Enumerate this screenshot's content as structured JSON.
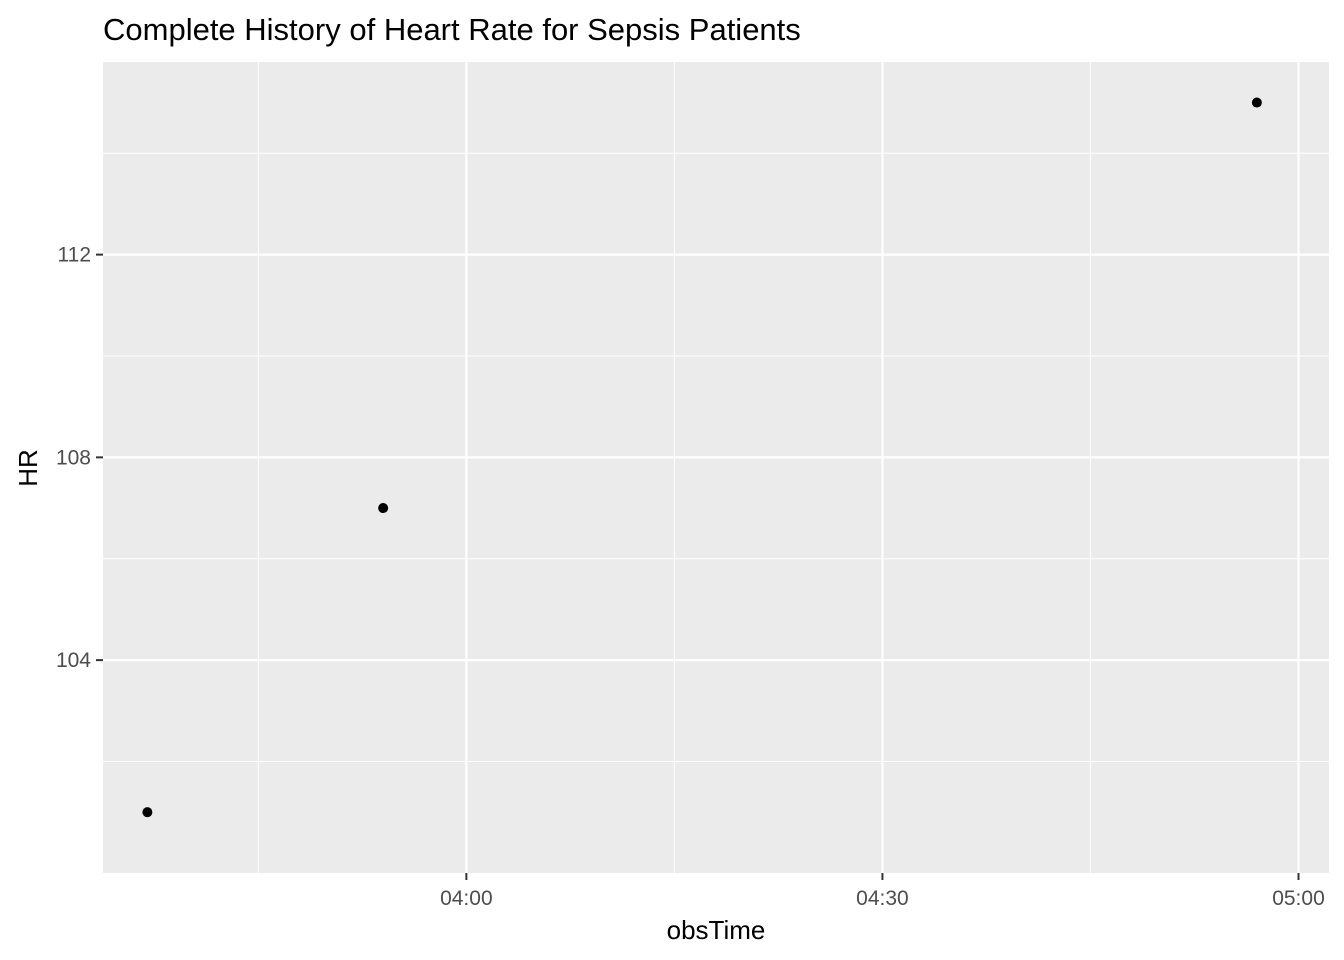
{
  "chart_data": {
    "type": "scatter",
    "title": "Complete History of Heart Rate for Sepsis Patients",
    "xlabel": "obsTime",
    "ylabel": "HR",
    "x_ticks": [
      "04:00",
      "04:30",
      "05:00"
    ],
    "y_ticks": [
      104,
      108,
      112
    ],
    "x_tick_minutes": [
      240,
      270,
      300
    ],
    "xlim_minutes": [
      213.8,
      302.2
    ],
    "ylim": [
      99.8,
      115.8
    ],
    "points": [
      {
        "x": "03:37",
        "y": 101
      },
      {
        "x": "03:54",
        "y": 107
      },
      {
        "x": "04:57",
        "y": 115
      }
    ],
    "grid": true,
    "panel_background": "#ebebeb",
    "grid_color": "#ffffff",
    "point_color": "#000000"
  }
}
